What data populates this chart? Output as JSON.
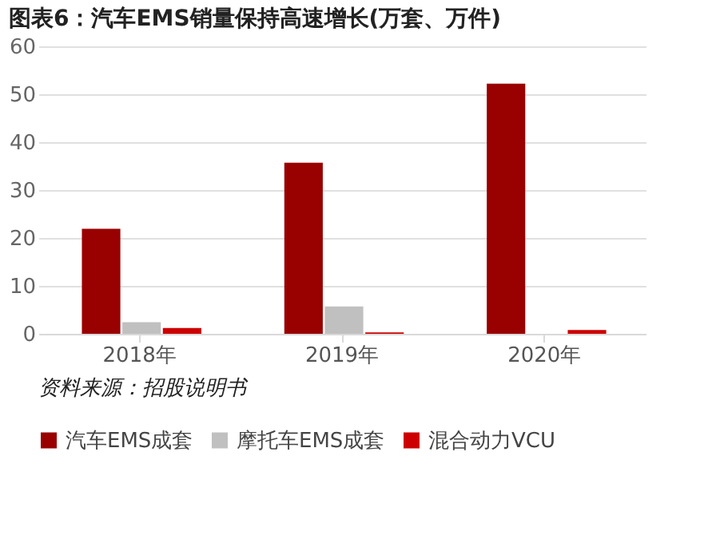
{
  "chart_data": {
    "type": "bar",
    "title": "图表6：汽车EMS销量保持高速增长(万套、万件)",
    "categories": [
      "2018年",
      "2019年",
      "2020年"
    ],
    "series": [
      {
        "name": "汽车EMS成套",
        "color": "#990000",
        "values": [
          21.9,
          35.7,
          52.2
        ]
      },
      {
        "name": "摩托车EMS成套",
        "color": "#c0c0c0",
        "values": [
          2.4,
          5.7,
          null
        ]
      },
      {
        "name": "混合动力VCU",
        "color": "#cc0000",
        "values": [
          1.2,
          0.3,
          0.8
        ]
      }
    ],
    "ylim": [
      0,
      60
    ],
    "yticks": [
      0,
      10,
      20,
      30,
      40,
      50,
      60
    ],
    "grid": "y",
    "legend": "bottom",
    "annotations": [
      "资料来源：招股说明书"
    ]
  }
}
